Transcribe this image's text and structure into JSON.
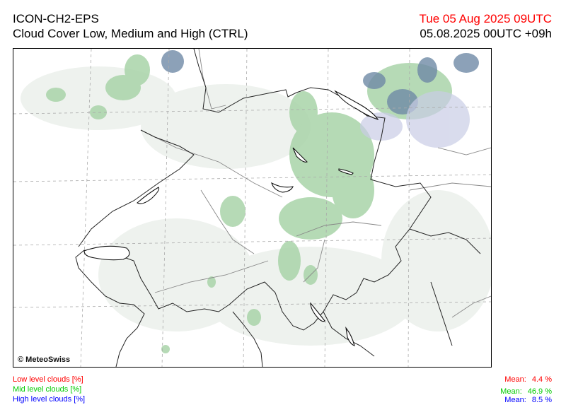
{
  "header": {
    "model": "ICON-CH2-EPS",
    "product": "Cloud Cover Low, Medium and High (CTRL)",
    "valid_time": "Tue 05 Aug 2025 09UTC",
    "run_time": "05.08.2025 00UTC +09h"
  },
  "map": {
    "copyright": "© MeteoSwiss"
  },
  "legend": {
    "low_label": "Low level clouds [%]",
    "mid_label": "Mid level clouds [%]",
    "high_label": "High level clouds [%]"
  },
  "stats": {
    "mean_label": "Mean:",
    "low_mean": "4.4 %",
    "mid_mean": "46.9 %",
    "high_mean": "8.5 %"
  },
  "colors": {
    "low": "#ff0000",
    "mid": "#00cc00",
    "high": "#0000ff",
    "valid_time": "#ff0000"
  }
}
